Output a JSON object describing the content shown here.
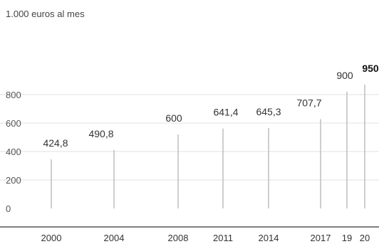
{
  "chart_data": {
    "type": "bar",
    "ylabel": "1.000 euros al mes",
    "categories": [
      "2000",
      "2004",
      "2008",
      "2011",
      "2014",
      "2017",
      "19",
      "20"
    ],
    "values": [
      424.8,
      490.8,
      600,
      641.4,
      645.3,
      707.7,
      900,
      950
    ],
    "value_labels": [
      "424,8",
      "490,8",
      "600",
      "641,4",
      "645,3",
      "707,7",
      "900",
      "950"
    ],
    "highlight_index": 7,
    "ylim": [
      0,
      1000
    ],
    "yticks": [
      0,
      200,
      400,
      600,
      800
    ],
    "grid": true,
    "colors": {
      "bar": "#bdbdbd",
      "grid": "#e2e2e2",
      "baseline": "#555555",
      "text": "#333333"
    }
  }
}
